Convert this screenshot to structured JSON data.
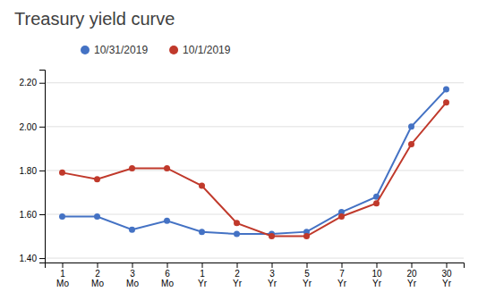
{
  "chart_data": {
    "type": "line",
    "title": "Treasury yield curve",
    "categories": [
      "1\nMo",
      "2\nMo",
      "3\nMo",
      "6\nMo",
      "1\nYr",
      "2\nYr",
      "3\nYr",
      "5\nYr",
      "7\nYr",
      "10\nYr",
      "20\nYr",
      "30\nYr"
    ],
    "series": [
      {
        "name": "10/31/2019",
        "color": "#4472C4",
        "values": [
          1.59,
          1.59,
          1.53,
          1.57,
          1.52,
          1.51,
          1.51,
          1.52,
          1.61,
          1.68,
          2.0,
          2.17
        ]
      },
      {
        "name": "10/1/2019",
        "color": "#C0392B",
        "values": [
          1.79,
          1.76,
          1.81,
          1.81,
          1.73,
          1.56,
          1.5,
          1.5,
          1.59,
          1.65,
          1.92,
          2.11
        ]
      }
    ],
    "ylim": [
      1.38,
      2.26
    ],
    "yticks": [
      {
        "value": 1.4,
        "label": "1.40"
      },
      {
        "value": 1.6,
        "label": "1.60"
      },
      {
        "value": 1.8,
        "label": "1.80"
      },
      {
        "value": 2.0,
        "label": "2.00"
      },
      {
        "value": 2.2,
        "label": "2.20"
      }
    ],
    "grid": true,
    "legend": "top",
    "marker": "circle"
  }
}
